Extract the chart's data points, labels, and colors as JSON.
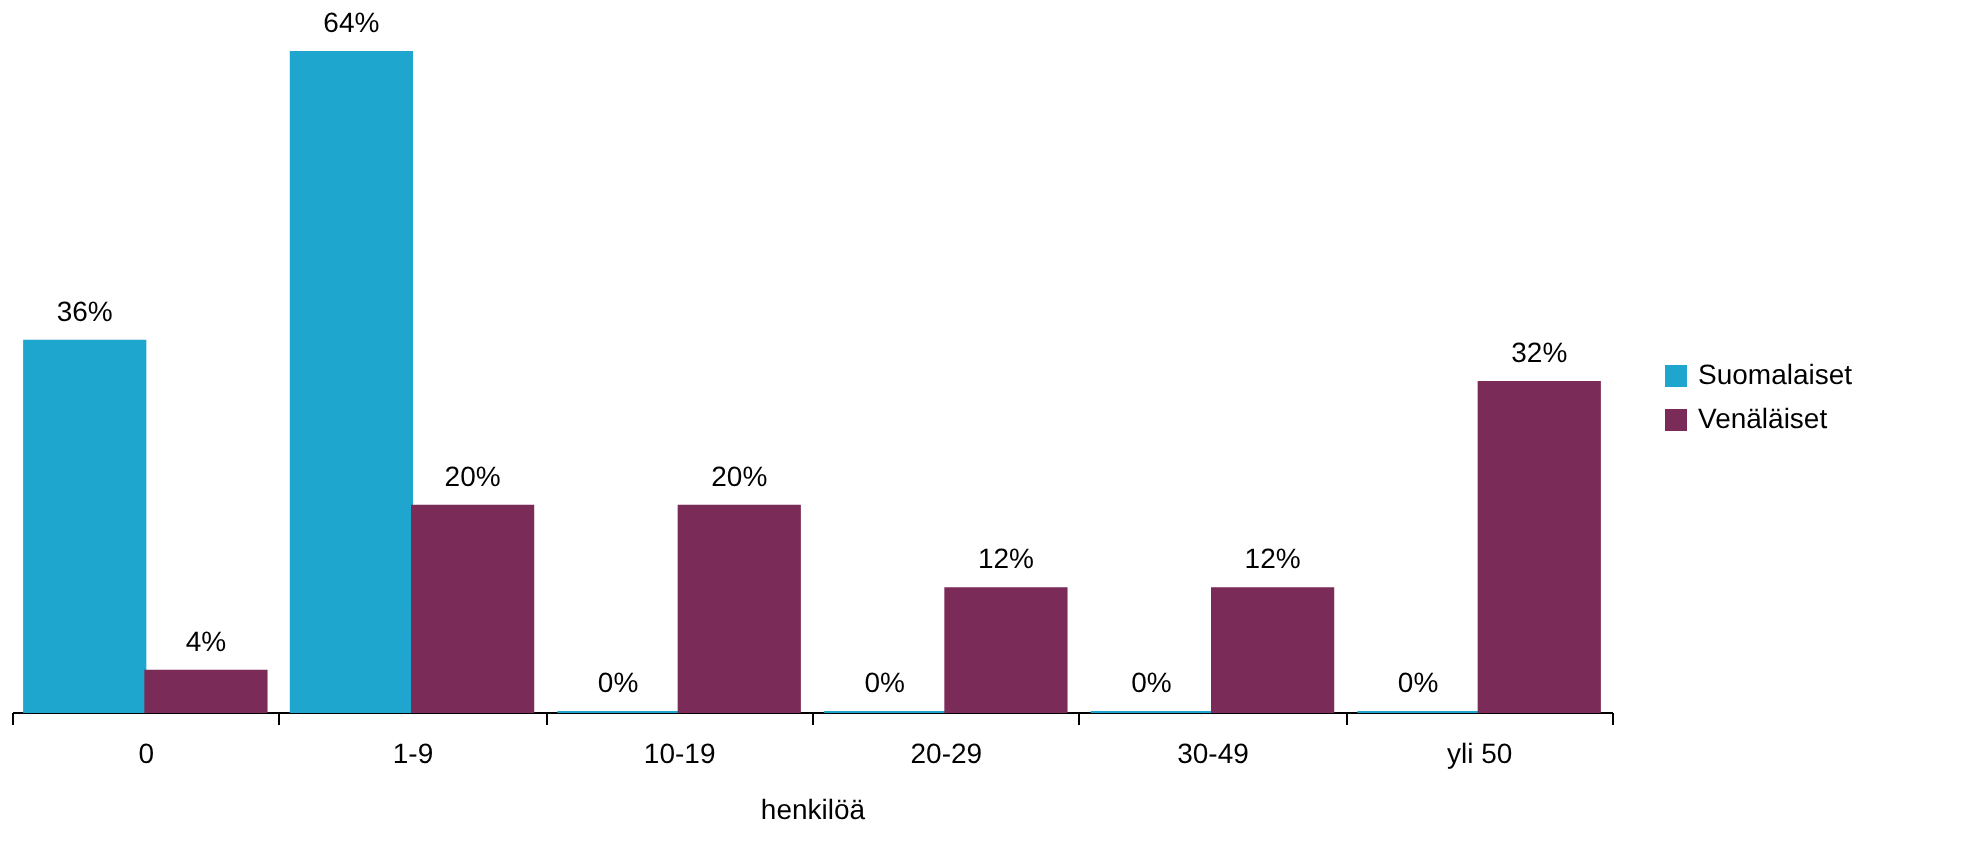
{
  "chart_data": {
    "type": "bar",
    "xlabel": "henkilöä",
    "categories": [
      "0",
      "1-9",
      "10-19",
      "20-29",
      "30-49",
      "yli 50"
    ],
    "series": [
      {
        "name": "Suomalaiset",
        "color": "#1ea6cf",
        "values": [
          36,
          64,
          0,
          0,
          0,
          0
        ],
        "value_labels": [
          "36%",
          "64%",
          "0%",
          "0%",
          "0%",
          "0%"
        ]
      },
      {
        "name": "Venäläiset",
        "color": "#7b2b57",
        "values": [
          4,
          20,
          20,
          12,
          12,
          32
        ],
        "value_labels": [
          "4%",
          "20%",
          "20%",
          "12%",
          "12%",
          "32%"
        ]
      }
    ],
    "legend": "right",
    "grid": false
  }
}
